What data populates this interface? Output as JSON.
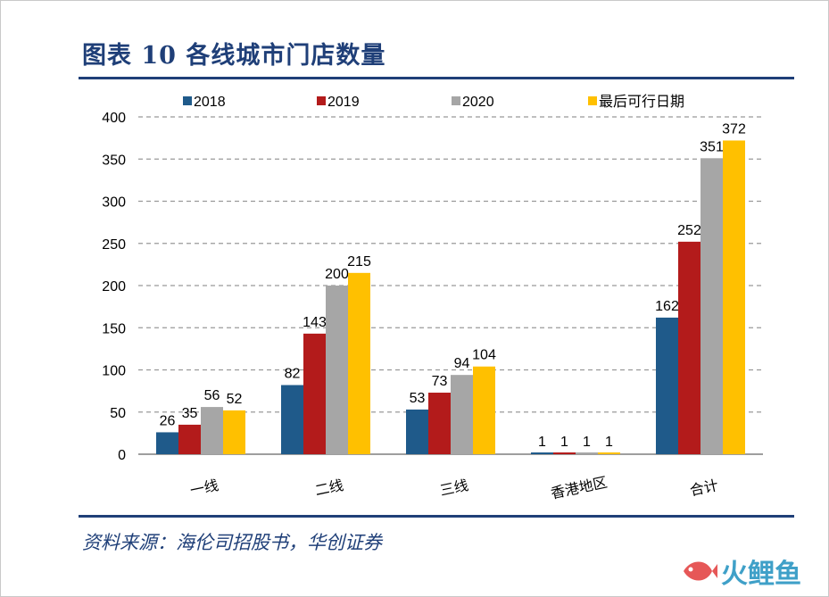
{
  "figure": {
    "title": "图表 10   各线城市门店数量",
    "source": "资料来源：海伦司招股书，华创证券",
    "watermark": "火鲤鱼"
  },
  "colors": {
    "title": "#1f3f78",
    "grid": "#999999",
    "axis": "#7f7f7f"
  },
  "chart_data": {
    "type": "bar",
    "title": "",
    "xlabel": "",
    "ylabel": "",
    "ylim": [
      0,
      400
    ],
    "yticks": [
      0,
      50,
      100,
      150,
      200,
      250,
      300,
      350,
      400
    ],
    "grid": true,
    "legend_position": "top",
    "categories": [
      "一线",
      "二线",
      "三线",
      "香港地区",
      "合计"
    ],
    "series": [
      {
        "name": "2018",
        "color": "#1f5a8a",
        "values": [
          26,
          82,
          53,
          1,
          162
        ]
      },
      {
        "name": "2019",
        "color": "#b31b1b",
        "values": [
          35,
          143,
          73,
          1,
          252
        ]
      },
      {
        "name": "2020",
        "color": "#a6a6a6",
        "values": [
          56,
          200,
          94,
          1,
          351
        ]
      },
      {
        "name": "最后可行日期",
        "color": "#ffc000",
        "values": [
          52,
          215,
          104,
          1,
          372
        ]
      }
    ]
  }
}
